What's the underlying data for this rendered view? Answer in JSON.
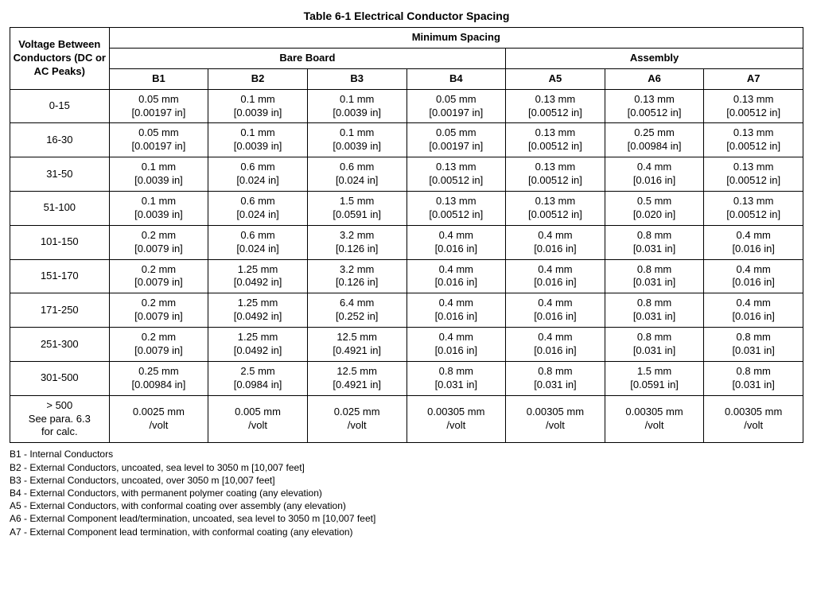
{
  "title": "Table 6-1   Electrical Conductor Spacing",
  "headers": {
    "voltage": "Voltage Between Conductors (DC or AC Peaks)",
    "minimum_spacing": "Minimum Spacing",
    "bare_board": "Bare Board",
    "assembly": "Assembly",
    "cols": [
      "B1",
      "B2",
      "B3",
      "B4",
      "A5",
      "A6",
      "A7"
    ]
  },
  "rows": [
    {
      "voltage": [
        "0-15"
      ],
      "cells": [
        [
          "0.05 mm",
          "[0.00197 in]"
        ],
        [
          "0.1 mm",
          "[0.0039 in]"
        ],
        [
          "0.1 mm",
          "[0.0039 in]"
        ],
        [
          "0.05 mm",
          "[0.00197 in]"
        ],
        [
          "0.13 mm",
          "[0.00512 in]"
        ],
        [
          "0.13 mm",
          "[0.00512 in]"
        ],
        [
          "0.13 mm",
          "[0.00512 in]"
        ]
      ]
    },
    {
      "voltage": [
        "16-30"
      ],
      "cells": [
        [
          "0.05 mm",
          "[0.00197 in]"
        ],
        [
          "0.1 mm",
          "[0.0039 in]"
        ],
        [
          "0.1 mm",
          "[0.0039 in]"
        ],
        [
          "0.05 mm",
          "[0.00197 in]"
        ],
        [
          "0.13 mm",
          "[0.00512 in]"
        ],
        [
          "0.25 mm",
          "[0.00984 in]"
        ],
        [
          "0.13 mm",
          "[0.00512 in]"
        ]
      ]
    },
    {
      "voltage": [
        "31-50"
      ],
      "cells": [
        [
          "0.1 mm",
          "[0.0039 in]"
        ],
        [
          "0.6 mm",
          "[0.024 in]"
        ],
        [
          "0.6 mm",
          "[0.024 in]"
        ],
        [
          "0.13 mm",
          "[0.00512 in]"
        ],
        [
          "0.13 mm",
          "[0.00512 in]"
        ],
        [
          "0.4 mm",
          "[0.016 in]"
        ],
        [
          "0.13 mm",
          "[0.00512 in]"
        ]
      ]
    },
    {
      "voltage": [
        "51-100"
      ],
      "cells": [
        [
          "0.1 mm",
          "[0.0039 in]"
        ],
        [
          "0.6 mm",
          "[0.024 in]"
        ],
        [
          "1.5 mm",
          "[0.0591 in]"
        ],
        [
          "0.13 mm",
          "[0.00512 in]"
        ],
        [
          "0.13 mm",
          "[0.00512 in]"
        ],
        [
          "0.5 mm",
          "[0.020 in]"
        ],
        [
          "0.13 mm",
          "[0.00512 in]"
        ]
      ]
    },
    {
      "voltage": [
        "101-150"
      ],
      "cells": [
        [
          "0.2 mm",
          "[0.0079 in]"
        ],
        [
          "0.6 mm",
          "[0.024 in]"
        ],
        [
          "3.2 mm",
          "[0.126 in]"
        ],
        [
          "0.4 mm",
          "[0.016 in]"
        ],
        [
          "0.4 mm",
          "[0.016 in]"
        ],
        [
          "0.8 mm",
          "[0.031 in]"
        ],
        [
          "0.4 mm",
          "[0.016 in]"
        ]
      ]
    },
    {
      "voltage": [
        "151-170"
      ],
      "cells": [
        [
          "0.2 mm",
          "[0.0079 in]"
        ],
        [
          "1.25 mm",
          "[0.0492 in]"
        ],
        [
          "3.2 mm",
          "[0.126 in]"
        ],
        [
          "0.4 mm",
          "[0.016 in]"
        ],
        [
          "0.4 mm",
          "[0.016 in]"
        ],
        [
          "0.8 mm",
          "[0.031 in]"
        ],
        [
          "0.4 mm",
          "[0.016 in]"
        ]
      ]
    },
    {
      "voltage": [
        "171-250"
      ],
      "cells": [
        [
          "0.2 mm",
          "[0.0079 in]"
        ],
        [
          "1.25 mm",
          "[0.0492 in]"
        ],
        [
          "6.4 mm",
          "[0.252 in]"
        ],
        [
          "0.4 mm",
          "[0.016 in]"
        ],
        [
          "0.4 mm",
          "[0.016 in]"
        ],
        [
          "0.8 mm",
          "[0.031 in]"
        ],
        [
          "0.4 mm",
          "[0.016 in]"
        ]
      ]
    },
    {
      "voltage": [
        "251-300"
      ],
      "cells": [
        [
          "0.2 mm",
          "[0.0079 in]"
        ],
        [
          "1.25 mm",
          "[0.0492 in]"
        ],
        [
          "12.5 mm",
          "[0.4921 in]"
        ],
        [
          "0.4 mm",
          "[0.016 in]"
        ],
        [
          "0.4 mm",
          "[0.016 in]"
        ],
        [
          "0.8 mm",
          "[0.031 in]"
        ],
        [
          "0.8 mm",
          "[0.031 in]"
        ]
      ]
    },
    {
      "voltage": [
        "301-500"
      ],
      "cells": [
        [
          "0.25 mm",
          "[0.00984 in]"
        ],
        [
          "2.5 mm",
          "[0.0984 in]"
        ],
        [
          "12.5 mm",
          "[0.4921 in]"
        ],
        [
          "0.8 mm",
          "[0.031 in]"
        ],
        [
          "0.8 mm",
          "[0.031 in]"
        ],
        [
          "1.5 mm",
          "[0.0591 in]"
        ],
        [
          "0.8 mm",
          "[0.031 in]"
        ]
      ]
    },
    {
      "voltage": [
        "> 500",
        "See para. 6.3",
        "for calc."
      ],
      "cells": [
        [
          "0.0025 mm",
          "/volt"
        ],
        [
          "0.005 mm",
          "/volt"
        ],
        [
          "0.025 mm",
          "/volt"
        ],
        [
          "0.00305 mm",
          "/volt"
        ],
        [
          "0.00305 mm",
          "/volt"
        ],
        [
          "0.00305 mm",
          "/volt"
        ],
        [
          "0.00305 mm",
          "/volt"
        ]
      ]
    }
  ],
  "footnotes": [
    "B1 - Internal Conductors",
    "B2 - External Conductors, uncoated, sea level to 3050 m [10,007 feet]",
    "B3 - External Conductors, uncoated, over 3050 m [10,007 feet]",
    "B4 - External Conductors, with permanent polymer coating (any elevation)",
    "A5 - External Conductors, with conformal coating over assembly (any elevation)",
    "A6 - External Component lead/termination, uncoated, sea level to 3050 m [10,007 feet]",
    "A7 - External Component lead termination, with conformal coating (any elevation)"
  ]
}
